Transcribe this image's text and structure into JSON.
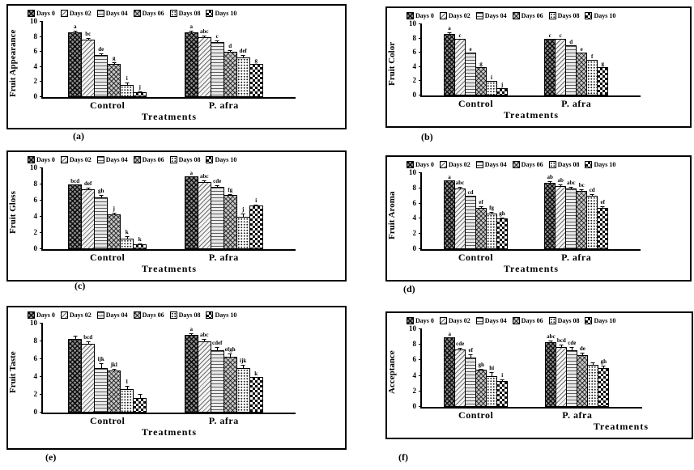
{
  "figure": {
    "legend": [
      "Days 0",
      "Days 02",
      "Days 04",
      "Days 06",
      "Days 08",
      "Days 10"
    ],
    "x_categories": [
      "Control",
      "P. afra"
    ],
    "xlabel": "Treatments",
    "ylim": [
      0,
      10
    ],
    "yticks": [
      0,
      2,
      4,
      6,
      8,
      10
    ],
    "accent_color": "#000000",
    "background_color": "#ffffff"
  },
  "chart_data": [
    {
      "type": "bar",
      "panel": "(a)",
      "ylabel": "Fruit Appearance",
      "xlabel": "Treatments",
      "ylim": [
        0,
        10
      ],
      "yticks": [
        0,
        2,
        4,
        6,
        8,
        10
      ],
      "legend": [
        "Days 0",
        "Days 02",
        "Days 04",
        "Days 06",
        "Days 08",
        "Days 10"
      ],
      "groups": [
        {
          "label": "Control",
          "values": [
            8.6,
            7.6,
            5.6,
            4.4,
            1.6,
            0.6
          ],
          "letters": [
            "a",
            "bc",
            "de",
            "g",
            "i",
            "j"
          ],
          "errors": [
            0.3,
            0.35,
            0.35,
            0.3,
            0.45,
            0.3
          ]
        },
        {
          "label": "P. afra",
          "values": [
            8.6,
            8.0,
            7.3,
            6.0,
            5.3,
            4.4
          ],
          "letters": [
            "a",
            "abc",
            "c",
            "d",
            "def",
            "g"
          ],
          "errors": [
            0.3,
            0.25,
            0.3,
            0.3,
            0.35,
            0
          ]
        }
      ]
    },
    {
      "type": "bar",
      "panel": "(b)",
      "ylabel": "Fruit Color",
      "xlabel": "Treatments",
      "ylim": [
        0,
        10
      ],
      "yticks": [
        0,
        2,
        4,
        6,
        8,
        10
      ],
      "legend": [
        "Days 0",
        "Days 02",
        "Days 04",
        "Days 06",
        "Days 08",
        "Days 10"
      ],
      "groups": [
        {
          "label": "Control",
          "values": [
            8.6,
            8.0,
            6.0,
            4.0,
            2.0,
            1.0
          ],
          "letters": [
            "a",
            "c",
            "e",
            "g",
            "i",
            "j"
          ],
          "errors": [
            0.4,
            0,
            0,
            0,
            0,
            0
          ]
        },
        {
          "label": "P. afra",
          "values": [
            8.0,
            8.0,
            7.1,
            6.0,
            5.0,
            4.0
          ],
          "letters": [
            "c",
            "c",
            "d",
            "e",
            "f",
            "g"
          ],
          "errors": [
            0,
            0,
            0,
            0,
            0,
            0
          ]
        }
      ]
    },
    {
      "type": "bar",
      "panel": "(c)",
      "ylabel": "Fruit Gloss",
      "xlabel": "Treatments",
      "ylim": [
        0,
        10
      ],
      "yticks": [
        0,
        2,
        4,
        6,
        8,
        10
      ],
      "legend": [
        "Days 0",
        "Days 02",
        "Days 04",
        "Days 06",
        "Days 08",
        "Days 10"
      ],
      "groups": [
        {
          "label": "Control",
          "values": [
            8.0,
            7.4,
            6.4,
            4.3,
            1.3,
            0.65
          ],
          "letters": [
            "bcd",
            "def",
            "gh",
            "j",
            "k",
            "k"
          ],
          "errors": [
            0,
            0.35,
            0.4,
            0.35,
            0.45,
            0.2
          ]
        },
        {
          "label": "P. afra",
          "values": [
            9.0,
            8.3,
            7.7,
            6.7,
            4.0,
            5.4
          ],
          "letters": [
            "a",
            "abc",
            "cde",
            "fg",
            "j",
            "i"
          ],
          "errors": [
            0,
            0.3,
            0.35,
            0.2,
            0.5,
            0.25
          ]
        }
      ]
    },
    {
      "type": "bar",
      "panel": "(d)",
      "ylabel": "Fruit Aroma",
      "xlabel": "Treatments",
      "ylim": [
        0,
        10
      ],
      "yticks": [
        0,
        2,
        4,
        6,
        8,
        10
      ],
      "legend": [
        "Days 0",
        "Days 02",
        "Days 04",
        "Days 06",
        "Days 08",
        "Days 10"
      ],
      "groups": [
        {
          "label": "Control",
          "values": [
            9.0,
            8.0,
            7.0,
            5.4,
            4.7,
            4.0
          ],
          "letters": [
            "a",
            "abc",
            "cd",
            "ef",
            "fg",
            "gh"
          ],
          "errors": [
            0,
            0.3,
            0,
            0.3,
            0.3,
            0.3
          ]
        },
        {
          "label": "P. afra",
          "values": [
            8.7,
            8.3,
            8.0,
            7.7,
            7.0,
            5.4
          ],
          "letters": [
            "ab",
            "ab",
            "abc",
            "bc",
            "cd",
            "ef"
          ],
          "errors": [
            0.35,
            0.3,
            0.25,
            0.3,
            0.35,
            0.4
          ]
        }
      ]
    },
    {
      "type": "bar",
      "panel": "(e)",
      "ylabel": "Fruit Taste",
      "xlabel": "Treatments",
      "ylim": [
        0,
        10
      ],
      "yticks": [
        0,
        2,
        4,
        6,
        8,
        10
      ],
      "legend": [
        "Days 0",
        "Days 02",
        "Days 04",
        "Days 06",
        "Days 08",
        "Days 10"
      ],
      "groups": [
        {
          "label": "Control",
          "values": [
            8.3,
            7.7,
            5.0,
            4.7,
            2.6,
            1.65
          ],
          "letters": [
            "",
            "bcd",
            "ijk",
            "jkl",
            "l",
            ""
          ],
          "errors": [
            0.4,
            0.35,
            0.6,
            0.3,
            0.45,
            0.5
          ]
        },
        {
          "label": "P. afra",
          "values": [
            8.7,
            8.0,
            7.0,
            6.3,
            5.0,
            4.0
          ],
          "letters": [
            "a",
            "abc",
            "cdef",
            "efgh",
            "ijk",
            "k"
          ],
          "errors": [
            0.3,
            0.35,
            0.45,
            0.4,
            0.5,
            0
          ]
        }
      ]
    },
    {
      "type": "bar",
      "panel": "(f)",
      "ylabel": "Acceptance",
      "xlabel": "Treatments",
      "xlabel_align": "right",
      "ylim": [
        0,
        10
      ],
      "yticks": [
        0,
        2,
        4,
        6,
        8,
        10
      ],
      "legend": [
        "Days 0",
        "Days 02",
        "Days 04",
        "Days 06",
        "Days 08",
        "Days 10"
      ],
      "groups": [
        {
          "label": "Control",
          "values": [
            9.0,
            7.4,
            6.4,
            4.75,
            4.0,
            3.3
          ],
          "letters": [
            "a",
            "cde",
            "ef",
            "gh",
            "hi",
            "i"
          ],
          "errors": [
            0,
            0.35,
            0.45,
            0.3,
            0.55,
            0.35
          ]
        },
        {
          "label": "P. afra",
          "values": [
            8.3,
            7.7,
            7.3,
            6.7,
            5.4,
            5.0
          ],
          "letters": [
            "abc",
            "bcd",
            "cde",
            "de",
            "",
            "gh"
          ],
          "errors": [
            0.35,
            0.4,
            0.5,
            0.35,
            0.45,
            0.4
          ]
        }
      ]
    }
  ]
}
